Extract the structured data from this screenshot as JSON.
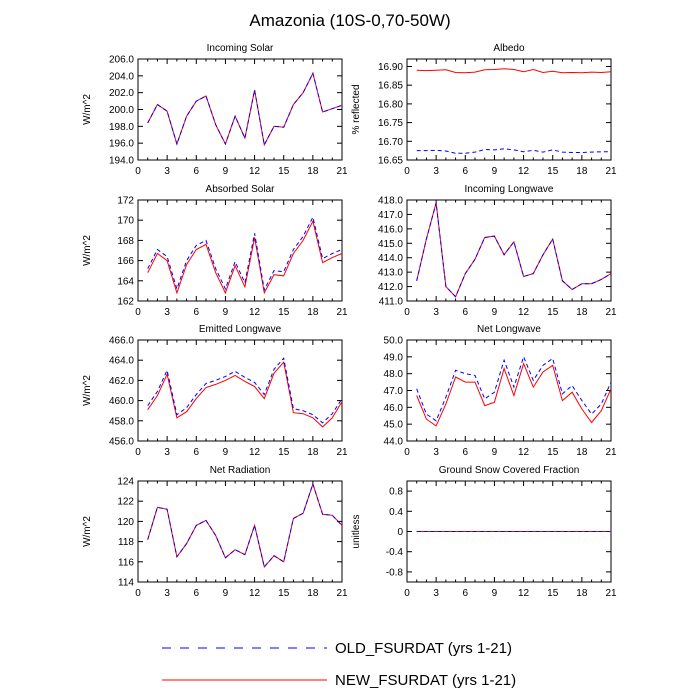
{
  "title": "Amazonia (10S-0,70-50W)",
  "colors": {
    "old": "#0000ff",
    "new": "#ff0000",
    "axis": "#000000"
  },
  "legend": [
    {
      "label": "OLD_FSURDAT (yrs 1-21)",
      "color": "#0000ff",
      "style": "dashed"
    },
    {
      "label": "NEW_FSURDAT (yrs 1-21)",
      "color": "#ff0000",
      "style": "solid"
    }
  ],
  "chart_data": [
    {
      "type": "line",
      "title": "Incoming Solar",
      "ylabel": "W/m^2",
      "xlim": [
        0,
        21
      ],
      "xticks": [
        "0",
        "3",
        "6",
        "9",
        "12",
        "15",
        "18",
        "21"
      ],
      "ylim": [
        194,
        206
      ],
      "yticks": [
        "194.0",
        "196.0",
        "198.0",
        "200.0",
        "202.0",
        "204.0",
        "206.0"
      ],
      "x": [
        1,
        2,
        3,
        4,
        5,
        6,
        7,
        8,
        9,
        10,
        11,
        12,
        13,
        14,
        15,
        16,
        17,
        18,
        19,
        20,
        21
      ],
      "series": [
        {
          "name": "OLD_FSURDAT",
          "values": [
            198.4,
            200.6,
            199.8,
            195.9,
            199.2,
            201.0,
            201.6,
            198.2,
            195.9,
            199.2,
            196.6,
            202.3,
            195.8,
            198.0,
            197.9,
            200.6,
            202.0,
            204.3,
            199.7,
            200.1,
            200.5
          ]
        },
        {
          "name": "NEW_FSURDAT",
          "values": [
            198.4,
            200.6,
            199.8,
            195.9,
            199.2,
            201.0,
            201.6,
            198.2,
            195.9,
            199.2,
            196.6,
            202.3,
            195.8,
            198.0,
            197.9,
            200.6,
            202.0,
            204.3,
            199.7,
            200.1,
            200.5
          ]
        }
      ]
    },
    {
      "type": "line",
      "title": "Albedo",
      "ylabel": "% reflected",
      "xlim": [
        0,
        21
      ],
      "xticks": [
        "0",
        "3",
        "6",
        "9",
        "12",
        "15",
        "18",
        "21"
      ],
      "ylim": [
        16.65,
        16.92
      ],
      "yticks": [
        "16.65",
        "16.70",
        "16.75",
        "16.80",
        "16.85",
        "16.90"
      ],
      "x": [
        1,
        2,
        3,
        4,
        5,
        6,
        7,
        8,
        9,
        10,
        11,
        12,
        13,
        14,
        15,
        16,
        17,
        18,
        19,
        20,
        21
      ],
      "series": [
        {
          "name": "OLD_FSURDAT",
          "values": [
            16.675,
            16.675,
            16.676,
            16.674,
            16.668,
            16.668,
            16.671,
            16.678,
            16.677,
            16.68,
            16.677,
            16.672,
            16.676,
            16.671,
            16.677,
            16.671,
            16.67,
            16.67,
            16.671,
            16.672,
            16.672
          ]
        },
        {
          "name": "NEW_FSURDAT",
          "values": [
            16.89,
            16.889,
            16.89,
            16.891,
            16.884,
            16.883,
            16.885,
            16.891,
            16.892,
            16.894,
            16.892,
            16.886,
            16.892,
            16.884,
            16.887,
            16.883,
            16.884,
            16.883,
            16.885,
            16.884,
            16.886
          ]
        }
      ]
    },
    {
      "type": "line",
      "title": "Absorbed Solar",
      "ylabel": "W/m^2",
      "xlim": [
        0,
        21
      ],
      "xticks": [
        "0",
        "3",
        "6",
        "9",
        "12",
        "15",
        "18",
        "21"
      ],
      "ylim": [
        162,
        172
      ],
      "yticks": [
        "162",
        "164",
        "166",
        "168",
        "170",
        "172"
      ],
      "x": [
        1,
        2,
        3,
        4,
        5,
        6,
        7,
        8,
        9,
        10,
        11,
        12,
        13,
        14,
        15,
        16,
        17,
        18,
        19,
        20,
        21
      ],
      "series": [
        {
          "name": "OLD_FSURDAT",
          "values": [
            165.2,
            167.1,
            166.4,
            163.2,
            166.0,
            167.5,
            168.0,
            165.2,
            163.2,
            165.9,
            163.8,
            168.7,
            163.1,
            165.0,
            164.9,
            167.1,
            168.4,
            170.3,
            166.2,
            166.7,
            167.1
          ]
        },
        {
          "name": "NEW_FSURDAT",
          "values": [
            164.8,
            166.7,
            166.0,
            162.8,
            165.6,
            167.1,
            167.6,
            164.8,
            162.8,
            165.5,
            163.4,
            168.3,
            162.8,
            164.6,
            164.5,
            166.7,
            168.0,
            169.9,
            165.8,
            166.3,
            166.7
          ]
        }
      ]
    },
    {
      "type": "line",
      "title": "Incoming Longwave",
      "ylabel": "",
      "xlim": [
        0,
        21
      ],
      "xticks": [
        "0",
        "3",
        "6",
        "9",
        "12",
        "15",
        "18",
        "21"
      ],
      "ylim": [
        411,
        418
      ],
      "yticks": [
        "411.0",
        "412.0",
        "413.0",
        "414.0",
        "415.0",
        "416.0",
        "417.0",
        "418.0"
      ],
      "x": [
        1,
        2,
        3,
        4,
        5,
        6,
        7,
        8,
        9,
        10,
        11,
        12,
        13,
        14,
        15,
        16,
        17,
        18,
        19,
        20,
        21
      ],
      "series": [
        {
          "name": "OLD_FSURDAT",
          "values": [
            412.4,
            415.3,
            417.8,
            412.0,
            411.3,
            412.9,
            413.9,
            415.4,
            415.5,
            414.2,
            415.1,
            412.7,
            412.9,
            414.2,
            415.3,
            412.4,
            411.8,
            412.2,
            412.2,
            412.5,
            412.9
          ]
        },
        {
          "name": "NEW_FSURDAT",
          "values": [
            412.4,
            415.3,
            417.8,
            412.0,
            411.3,
            412.9,
            413.9,
            415.4,
            415.5,
            414.2,
            415.1,
            412.7,
            412.9,
            414.2,
            415.3,
            412.4,
            411.8,
            412.2,
            412.2,
            412.5,
            412.9
          ]
        }
      ]
    },
    {
      "type": "line",
      "title": "Emitted Longwave",
      "ylabel": "W/m^2",
      "xlim": [
        0,
        21
      ],
      "xticks": [
        "0",
        "3",
        "6",
        "9",
        "12",
        "15",
        "18",
        "21"
      ],
      "ylim": [
        456,
        466
      ],
      "yticks": [
        "456.0",
        "458.0",
        "460.0",
        "462.0",
        "464.0",
        "466.0"
      ],
      "x": [
        1,
        2,
        3,
        4,
        5,
        6,
        7,
        8,
        9,
        10,
        11,
        12,
        13,
        14,
        15,
        16,
        17,
        18,
        19,
        20,
        21
      ],
      "series": [
        {
          "name": "OLD_FSURDAT",
          "values": [
            459.5,
            460.9,
            463.0,
            458.6,
            459.3,
            460.6,
            461.7,
            462.0,
            462.4,
            462.9,
            462.3,
            461.8,
            460.6,
            463.1,
            464.2,
            459.2,
            459.0,
            458.6,
            457.8,
            458.7,
            460.2
          ]
        },
        {
          "name": "NEW_FSURDAT",
          "values": [
            459.1,
            460.5,
            462.6,
            458.3,
            458.9,
            460.2,
            461.3,
            461.6,
            462.0,
            462.5,
            461.9,
            461.4,
            460.2,
            462.7,
            463.8,
            458.8,
            458.7,
            458.3,
            457.4,
            458.3,
            459.9
          ]
        }
      ]
    },
    {
      "type": "line",
      "title": "Net Longwave",
      "ylabel": "",
      "xlim": [
        0,
        21
      ],
      "xticks": [
        "0",
        "3",
        "6",
        "9",
        "12",
        "15",
        "18",
        "21"
      ],
      "ylim": [
        44,
        50
      ],
      "yticks": [
        "44.0",
        "45.0",
        "46.0",
        "47.0",
        "48.0",
        "49.0",
        "50.0"
      ],
      "x": [
        1,
        2,
        3,
        4,
        5,
        6,
        7,
        8,
        9,
        10,
        11,
        12,
        13,
        14,
        15,
        16,
        17,
        18,
        19,
        20,
        21
      ],
      "series": [
        {
          "name": "OLD_FSURDAT",
          "values": [
            47.1,
            45.6,
            45.2,
            46.6,
            48.2,
            48.0,
            47.9,
            46.5,
            46.9,
            48.8,
            47.2,
            49.0,
            47.6,
            48.5,
            48.9,
            46.8,
            47.3,
            46.4,
            45.6,
            46.2,
            47.5
          ]
        },
        {
          "name": "NEW_FSURDAT",
          "values": [
            46.7,
            45.3,
            44.9,
            46.2,
            47.8,
            47.5,
            47.5,
            46.1,
            46.3,
            48.3,
            46.7,
            48.6,
            47.2,
            48.1,
            48.5,
            46.4,
            46.9,
            45.9,
            45.1,
            45.8,
            47.1
          ]
        }
      ]
    },
    {
      "type": "line",
      "title": "Net Radiation",
      "ylabel": "W/m^2",
      "xlim": [
        0,
        21
      ],
      "xticks": [
        "0",
        "3",
        "6",
        "9",
        "12",
        "15",
        "18",
        "21"
      ],
      "ylim": [
        114,
        124
      ],
      "yticks": [
        "114",
        "116",
        "118",
        "120",
        "122",
        "124"
      ],
      "x": [
        1,
        2,
        3,
        4,
        5,
        6,
        7,
        8,
        9,
        10,
        11,
        12,
        13,
        14,
        15,
        16,
        17,
        18,
        19,
        20,
        21
      ],
      "series": [
        {
          "name": "OLD_FSURDAT",
          "values": [
            118.2,
            121.4,
            121.2,
            116.5,
            117.8,
            119.6,
            120.1,
            118.6,
            116.4,
            117.2,
            116.7,
            119.6,
            115.5,
            116.6,
            116.0,
            120.3,
            120.8,
            123.7,
            120.7,
            120.6,
            119.6
          ]
        },
        {
          "name": "NEW_FSURDAT",
          "values": [
            118.2,
            121.4,
            121.2,
            116.5,
            117.8,
            119.6,
            120.1,
            118.6,
            116.4,
            117.2,
            116.7,
            119.6,
            115.5,
            116.6,
            116.0,
            120.3,
            120.8,
            123.7,
            120.7,
            120.6,
            119.6
          ]
        }
      ]
    },
    {
      "type": "line",
      "title": "Ground Snow Covered Fraction",
      "ylabel": "unitless",
      "xlim": [
        0,
        21
      ],
      "xticks": [
        "0",
        "3",
        "6",
        "9",
        "12",
        "15",
        "18",
        "21"
      ],
      "ylim": [
        -1,
        1
      ],
      "yticks": [
        "-0.8",
        "-0.4",
        "0",
        "0.4",
        "0.8"
      ],
      "ytick_values": [
        -0.8,
        -0.4,
        0,
        0.4,
        0.8
      ],
      "x": [
        1,
        2,
        3,
        4,
        5,
        6,
        7,
        8,
        9,
        10,
        11,
        12,
        13,
        14,
        15,
        16,
        17,
        18,
        19,
        20,
        21
      ],
      "series": [
        {
          "name": "OLD_FSURDAT",
          "values": [
            0,
            0,
            0,
            0,
            0,
            0,
            0,
            0,
            0,
            0,
            0,
            0,
            0,
            0,
            0,
            0,
            0,
            0,
            0,
            0,
            0
          ]
        },
        {
          "name": "NEW_FSURDAT",
          "values": [
            0,
            0,
            0,
            0,
            0,
            0,
            0,
            0,
            0,
            0,
            0,
            0,
            0,
            0,
            0,
            0,
            0,
            0,
            0,
            0,
            0
          ]
        }
      ]
    }
  ]
}
